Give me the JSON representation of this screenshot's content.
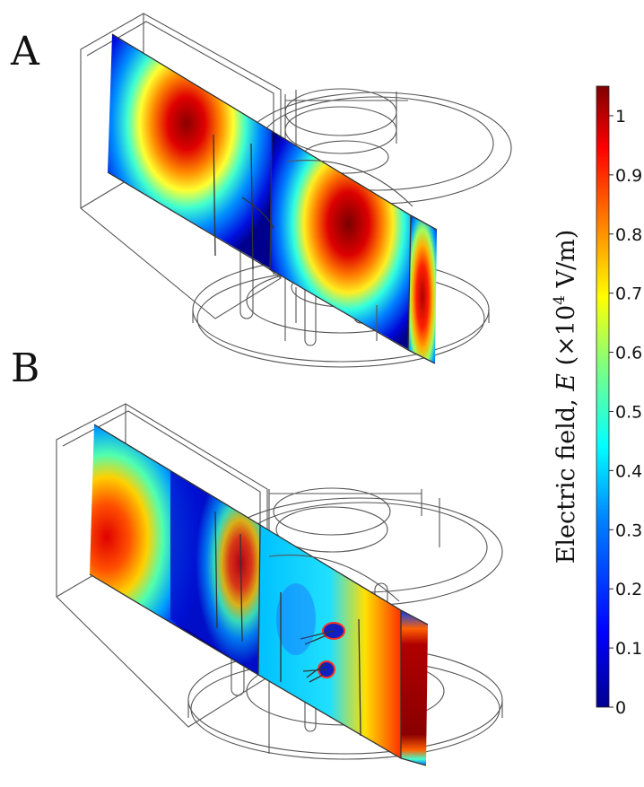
{
  "panels": [
    {
      "id": "A",
      "label": "A"
    },
    {
      "id": "B",
      "label": "B"
    }
  ],
  "colorbar": {
    "title_prefix": "Electric field, ",
    "title_symbol": "E",
    "title_unit_open": " (×10",
    "title_exponent": "4",
    "title_unit_close": " V/m)",
    "min": 0,
    "max": 1.05,
    "ticks": [
      "0",
      "0.1",
      "0.2",
      "0.3",
      "0.4",
      "0.5",
      "0.6",
      "0.7",
      "0.8",
      "0.9",
      "1"
    ],
    "colors": [
      "#00008f",
      "#0000ff",
      "#0080ff",
      "#00ffff",
      "#80ff80",
      "#ffff00",
      "#ff8000",
      "#ff0000",
      "#800000"
    ]
  }
}
